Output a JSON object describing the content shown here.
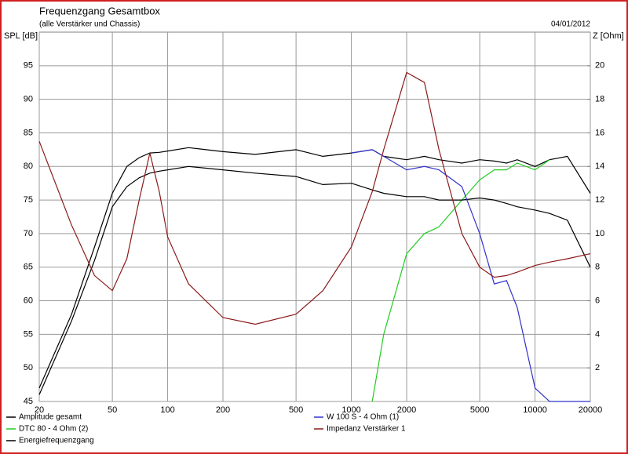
{
  "chart_data": {
    "type": "line",
    "title": "Frequenzgang Gesamtbox",
    "subtitle": "(alle Verstärker und Chassis)",
    "date": "04/01/2012",
    "y_label": "SPL [dB]",
    "y2_label": "Z [Ohm]",
    "x_scale": "log",
    "grid": true,
    "legend": "bottom",
    "x": [
      20,
      30,
      40,
      50,
      60,
      70,
      80,
      90,
      100,
      130,
      200,
      300,
      500,
      700,
      1000,
      1300,
      1500,
      2000,
      2500,
      3000,
      4000,
      5000,
      6000,
      7000,
      8000,
      10000,
      12000,
      15000,
      20000
    ],
    "xlim": [
      20,
      20000
    ],
    "xticks": [
      20,
      50,
      100,
      200,
      500,
      1000,
      2000,
      5000,
      10000,
      20000
    ],
    "ylim": [
      45,
      100
    ],
    "yticks": [
      45,
      50,
      55,
      60,
      65,
      70,
      75,
      80,
      85,
      90,
      95
    ],
    "y2lim": [
      0,
      22
    ],
    "y2ticks": [
      2,
      4,
      6,
      8,
      10,
      12,
      14,
      16,
      18,
      20
    ],
    "series": [
      {
        "name": "Amplitude gesamt",
        "color": "#000000",
        "values": [
          47,
          58,
          68,
          76,
          80,
          81.3,
          82,
          82.1,
          82.3,
          82.8,
          82.2,
          81.8,
          82.5,
          81.5,
          82,
          82.5,
          81.5,
          81,
          81.5,
          81,
          80.5,
          81,
          80.8,
          80.5,
          81,
          80,
          81,
          81.5,
          76
        ]
      },
      {
        "name": "DTC 80 - 4 Ohm (2)",
        "color": "#22cc22",
        "values": [
          null,
          null,
          null,
          null,
          null,
          null,
          null,
          null,
          null,
          null,
          null,
          null,
          null,
          null,
          null,
          45,
          55,
          67,
          70,
          71,
          75,
          78,
          79.5,
          79.5,
          80.5,
          79.5,
          81,
          null,
          null
        ]
      },
      {
        "name": "Energiefrequenzgang",
        "color": "#000000",
        "values": [
          46,
          57,
          66,
          74,
          77,
          78.3,
          79,
          79.3,
          79.5,
          80,
          79.5,
          79,
          78.5,
          77.3,
          77.5,
          76.5,
          76,
          75.5,
          75.5,
          75,
          75,
          75.3,
          75,
          74.5,
          74,
          73.5,
          73,
          72,
          65
        ]
      },
      {
        "name": "W 100 S - 4 Ohm (1)",
        "color": "#3333cc",
        "values": [
          null,
          null,
          null,
          null,
          null,
          null,
          null,
          null,
          null,
          null,
          null,
          null,
          null,
          null,
          82,
          82.5,
          81.5,
          79.5,
          80,
          79.5,
          77,
          70,
          62.5,
          63,
          59,
          47,
          45,
          45,
          45
        ]
      },
      {
        "name": "Impedanz Verstärker 1",
        "color": "#8b1a1a",
        "axis": "y2",
        "values": [
          15.5,
          10.5,
          7.5,
          6.6,
          8.5,
          12,
          14.8,
          12.5,
          9.8,
          7,
          5,
          4.6,
          5.2,
          6.6,
          9.2,
          12.5,
          15,
          19.6,
          19,
          15,
          10,
          8,
          7.4,
          7.5,
          7.7,
          8.1,
          8.3,
          8.5,
          8.8
        ]
      }
    ]
  }
}
